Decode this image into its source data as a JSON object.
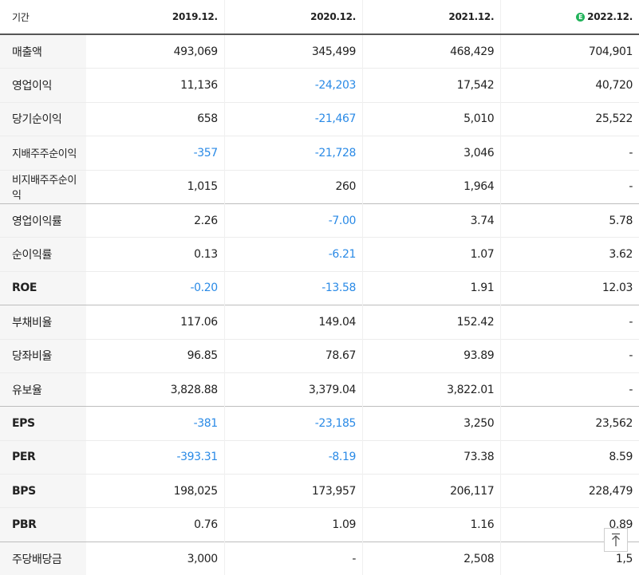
{
  "header": {
    "period_label": "기간",
    "columns": [
      "2019.12.",
      "2020.12.",
      "2021.12.",
      "2022.12."
    ],
    "estimate_badge": "E",
    "estimate_color": "#21b35a"
  },
  "colors": {
    "negative": "#2a8ae6",
    "label_bg": "#f6f6f6"
  },
  "rows": [
    {
      "label": "매출액",
      "values": [
        "493,069",
        "345,499",
        "468,429",
        "704,901"
      ]
    },
    {
      "label": "영업이익",
      "values": [
        "11,136",
        "-24,203",
        "17,542",
        "40,720"
      ]
    },
    {
      "label": "당기순이익",
      "values": [
        "658",
        "-21,467",
        "5,010",
        "25,522"
      ]
    },
    {
      "label": "지배주주순이익",
      "values": [
        "-357",
        "-21,728",
        "3,046",
        "-"
      ]
    },
    {
      "label": "비지배주주순이익",
      "values": [
        "1,015",
        "260",
        "1,964",
        "-"
      ]
    },
    {
      "label": "영업이익률",
      "values": [
        "2.26",
        "-7.00",
        "3.74",
        "5.78"
      ]
    },
    {
      "label": "순이익률",
      "values": [
        "0.13",
        "-6.21",
        "1.07",
        "3.62"
      ]
    },
    {
      "label": "ROE",
      "values": [
        "-0.20",
        "-13.58",
        "1.91",
        "12.03"
      ]
    },
    {
      "label": "부채비율",
      "values": [
        "117.06",
        "149.04",
        "152.42",
        "-"
      ]
    },
    {
      "label": "당좌비율",
      "values": [
        "96.85",
        "78.67",
        "93.89",
        "-"
      ]
    },
    {
      "label": "유보율",
      "values": [
        "3,828.88",
        "3,379.04",
        "3,822.01",
        "-"
      ]
    },
    {
      "label": "EPS",
      "values": [
        "-381",
        "-23,185",
        "3,250",
        "23,562"
      ]
    },
    {
      "label": "PER",
      "values": [
        "-393.31",
        "-8.19",
        "73.38",
        "8.59"
      ]
    },
    {
      "label": "BPS",
      "values": [
        "198,025",
        "173,957",
        "206,117",
        "228,479"
      ]
    },
    {
      "label": "PBR",
      "values": [
        "0.76",
        "1.09",
        "1.16",
        "0.89"
      ]
    },
    {
      "label": "주당배당금",
      "values": [
        "3,000",
        "-",
        "2,508",
        "1,5"
      ]
    }
  ],
  "scroll_top_icon": "arrow-up-icon"
}
